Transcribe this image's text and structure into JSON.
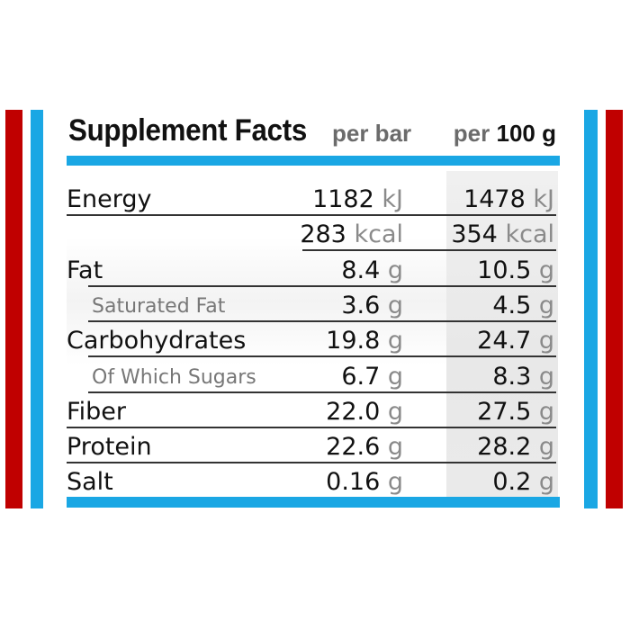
{
  "title": "Supplement Facts",
  "headers": {
    "per_bar": "per bar",
    "per_100g_prefix": "per",
    "per_100g_value": "100 g"
  },
  "rows": [
    {
      "label": "Energy",
      "sub": false,
      "v1": "1182",
      "u1": "kJ",
      "v2": "1478",
      "u2": "kJ"
    },
    {
      "label": "",
      "sub": false,
      "v1": "283",
      "u1": "kcal",
      "v2": "354",
      "u2": "kcal"
    },
    {
      "label": "Fat",
      "sub": false,
      "v1": "8.4",
      "u1": "g",
      "v2": "10.5",
      "u2": "g"
    },
    {
      "label": "Saturated Fat",
      "sub": true,
      "v1": "3.6",
      "u1": "g",
      "v2": "4.5",
      "u2": "g"
    },
    {
      "label": "Carbohydrates",
      "sub": false,
      "v1": "19.8",
      "u1": "g",
      "v2": "24.7",
      "u2": "g"
    },
    {
      "label": "Of Which Sugars",
      "sub": true,
      "v1": "6.7",
      "u1": "g",
      "v2": "8.3",
      "u2": "g"
    },
    {
      "label": "Fiber",
      "sub": false,
      "v1": "22.0",
      "u1": "g",
      "v2": "27.5",
      "u2": "g"
    },
    {
      "label": "Protein",
      "sub": false,
      "v1": "22.6",
      "u1": "g",
      "v2": "28.2",
      "u2": "g"
    },
    {
      "label": "Salt",
      "sub": false,
      "v1": "0.16",
      "u1": "g",
      "v2": "0.2",
      "u2": "g"
    }
  ],
  "colors": {
    "accent_blue": "#1aa7e4",
    "accent_red": "#c00000",
    "text": "#111111",
    "muted": "#8a8a8a"
  }
}
